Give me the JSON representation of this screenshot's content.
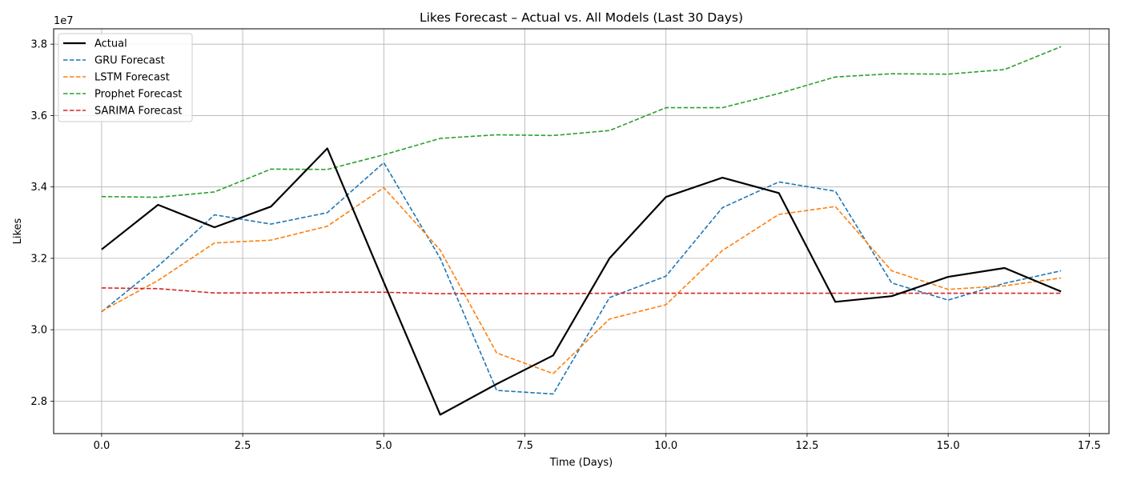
{
  "chart_data": {
    "type": "line",
    "title": "Likes Forecast – Actual vs. All Models (Last 30 Days)",
    "xlabel": "Time (Days)",
    "ylabel": "Likes",
    "y_offset_text": "1e7",
    "x_ticks": [
      "0.0",
      "2.5",
      "5.0",
      "7.5",
      "10.0",
      "12.5",
      "15.0",
      "17.5"
    ],
    "y_ticks": [
      "2.8",
      "3.0",
      "3.2",
      "3.4",
      "3.6",
      "3.8"
    ],
    "xlim": [
      -0.85,
      17.85
    ],
    "ylim": [
      2.709,
      3.843
    ],
    "y_scale_note": "values in units of 1e7",
    "grid": true,
    "legend_position": "top-left",
    "x": [
      0,
      1,
      2,
      3,
      4,
      5,
      6,
      7,
      8,
      9,
      10,
      11,
      12,
      13,
      14,
      15,
      16,
      17
    ],
    "series": [
      {
        "name": "Actual",
        "color": "#000000",
        "style": "solid",
        "width": 2.2,
        "values": [
          3.225,
          3.35,
          3.287,
          3.345,
          3.508,
          3.133,
          2.762,
          2.848,
          2.928,
          3.2,
          3.372,
          3.426,
          3.383,
          3.078,
          3.094,
          3.148,
          3.173,
          3.107
        ]
      },
      {
        "name": "GRU Forecast",
        "color": "#1f77b4",
        "style": "dashed",
        "width": 1.6,
        "values": [
          3.05,
          3.178,
          3.322,
          3.296,
          3.328,
          3.468,
          3.2,
          2.83,
          2.82,
          3.09,
          3.15,
          3.342,
          3.414,
          3.388,
          3.131,
          3.083,
          3.13,
          3.165
        ]
      },
      {
        "name": "LSTM Forecast",
        "color": "#ff7f0e",
        "style": "dashed",
        "width": 1.6,
        "values": [
          3.052,
          3.138,
          3.243,
          3.251,
          3.29,
          3.398,
          3.223,
          2.935,
          2.877,
          3.03,
          3.07,
          3.222,
          3.323,
          3.345,
          3.165,
          3.113,
          3.123,
          3.145
        ]
      },
      {
        "name": "Prophet Forecast",
        "color": "#2ca02c",
        "style": "dashed",
        "width": 1.6,
        "values": [
          3.373,
          3.371,
          3.386,
          3.45,
          3.449,
          3.49,
          3.536,
          3.546,
          3.544,
          3.558,
          3.622,
          3.622,
          3.662,
          3.708,
          3.717,
          3.716,
          3.729,
          3.793
        ]
      },
      {
        "name": "SARIMA Forecast",
        "color": "#d62728",
        "style": "dashed",
        "width": 1.6,
        "values": [
          3.117,
          3.115,
          3.103,
          3.103,
          3.105,
          3.105,
          3.101,
          3.101,
          3.101,
          3.102,
          3.102,
          3.102,
          3.102,
          3.102,
          3.102,
          3.102,
          3.102,
          3.102
        ]
      }
    ]
  }
}
